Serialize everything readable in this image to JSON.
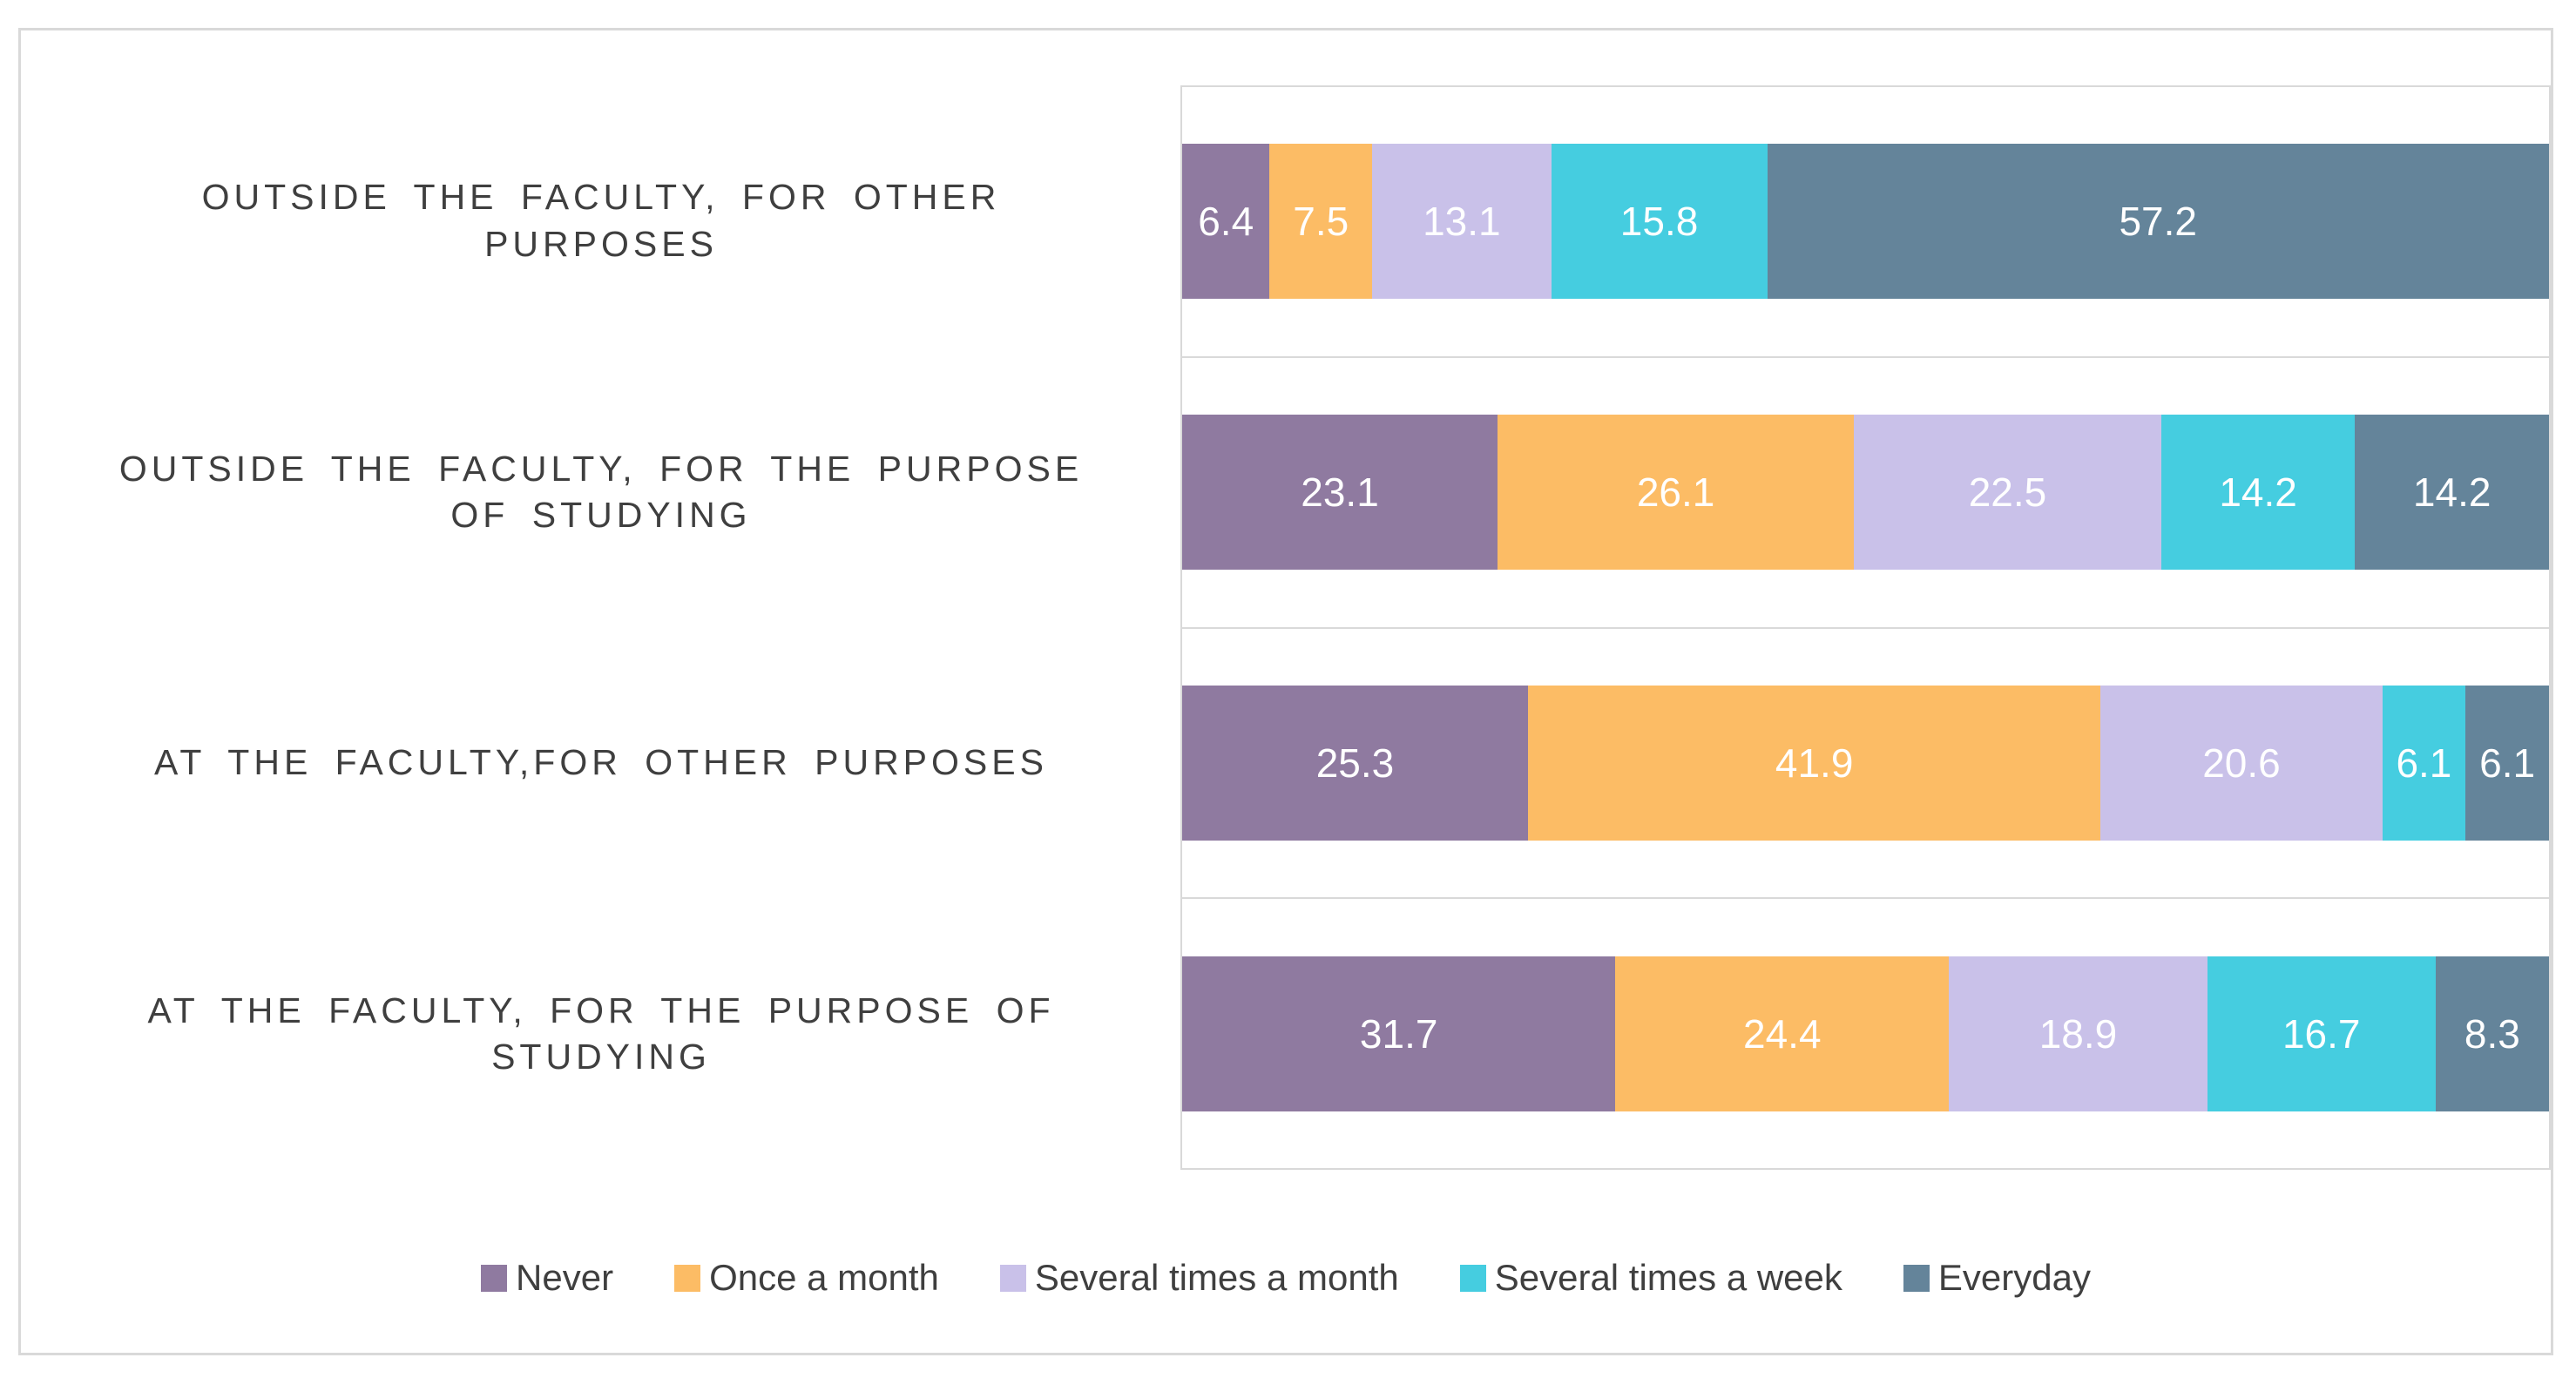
{
  "chart_data": {
    "type": "bar",
    "subtype": "stacked-horizontal-100pct",
    "title": "",
    "xlabel": "",
    "ylabel": "",
    "xlim": [
      0,
      100
    ],
    "grid": "category-separators-only",
    "legend_position": "bottom-center",
    "value_labels": "white, centered in each segment, one decimal",
    "categories": [
      [
        "OUTSIDE THE FACULTY, FOR OTHER",
        "PURPOSES"
      ],
      [
        "OUTSIDE THE FACULTY, FOR THE PURPOSE",
        "OF STUDYING"
      ],
      [
        "AT THE FACULTY,FOR OTHER PURPOSES"
      ],
      [
        "AT THE FACULTY, FOR THE PURPOSE OF",
        "STUDYING"
      ]
    ],
    "series": [
      {
        "name": "Never",
        "color": "#8F7AA0",
        "values": [
          6.4,
          23.1,
          25.3,
          31.7
        ]
      },
      {
        "name": "Once a month",
        "color": "#FCBC65",
        "values": [
          7.5,
          26.1,
          41.9,
          24.4
        ]
      },
      {
        "name": "Several times a month",
        "color": "#C9C1E9",
        "values": [
          13.1,
          22.5,
          20.6,
          18.9
        ]
      },
      {
        "name": "Several times a week",
        "color": "#45CDE0",
        "values": [
          15.8,
          14.2,
          6.1,
          16.7
        ]
      },
      {
        "name": "Everyday",
        "color": "#64849A",
        "values": [
          57.2,
          14.2,
          6.1,
          8.3
        ]
      }
    ]
  }
}
